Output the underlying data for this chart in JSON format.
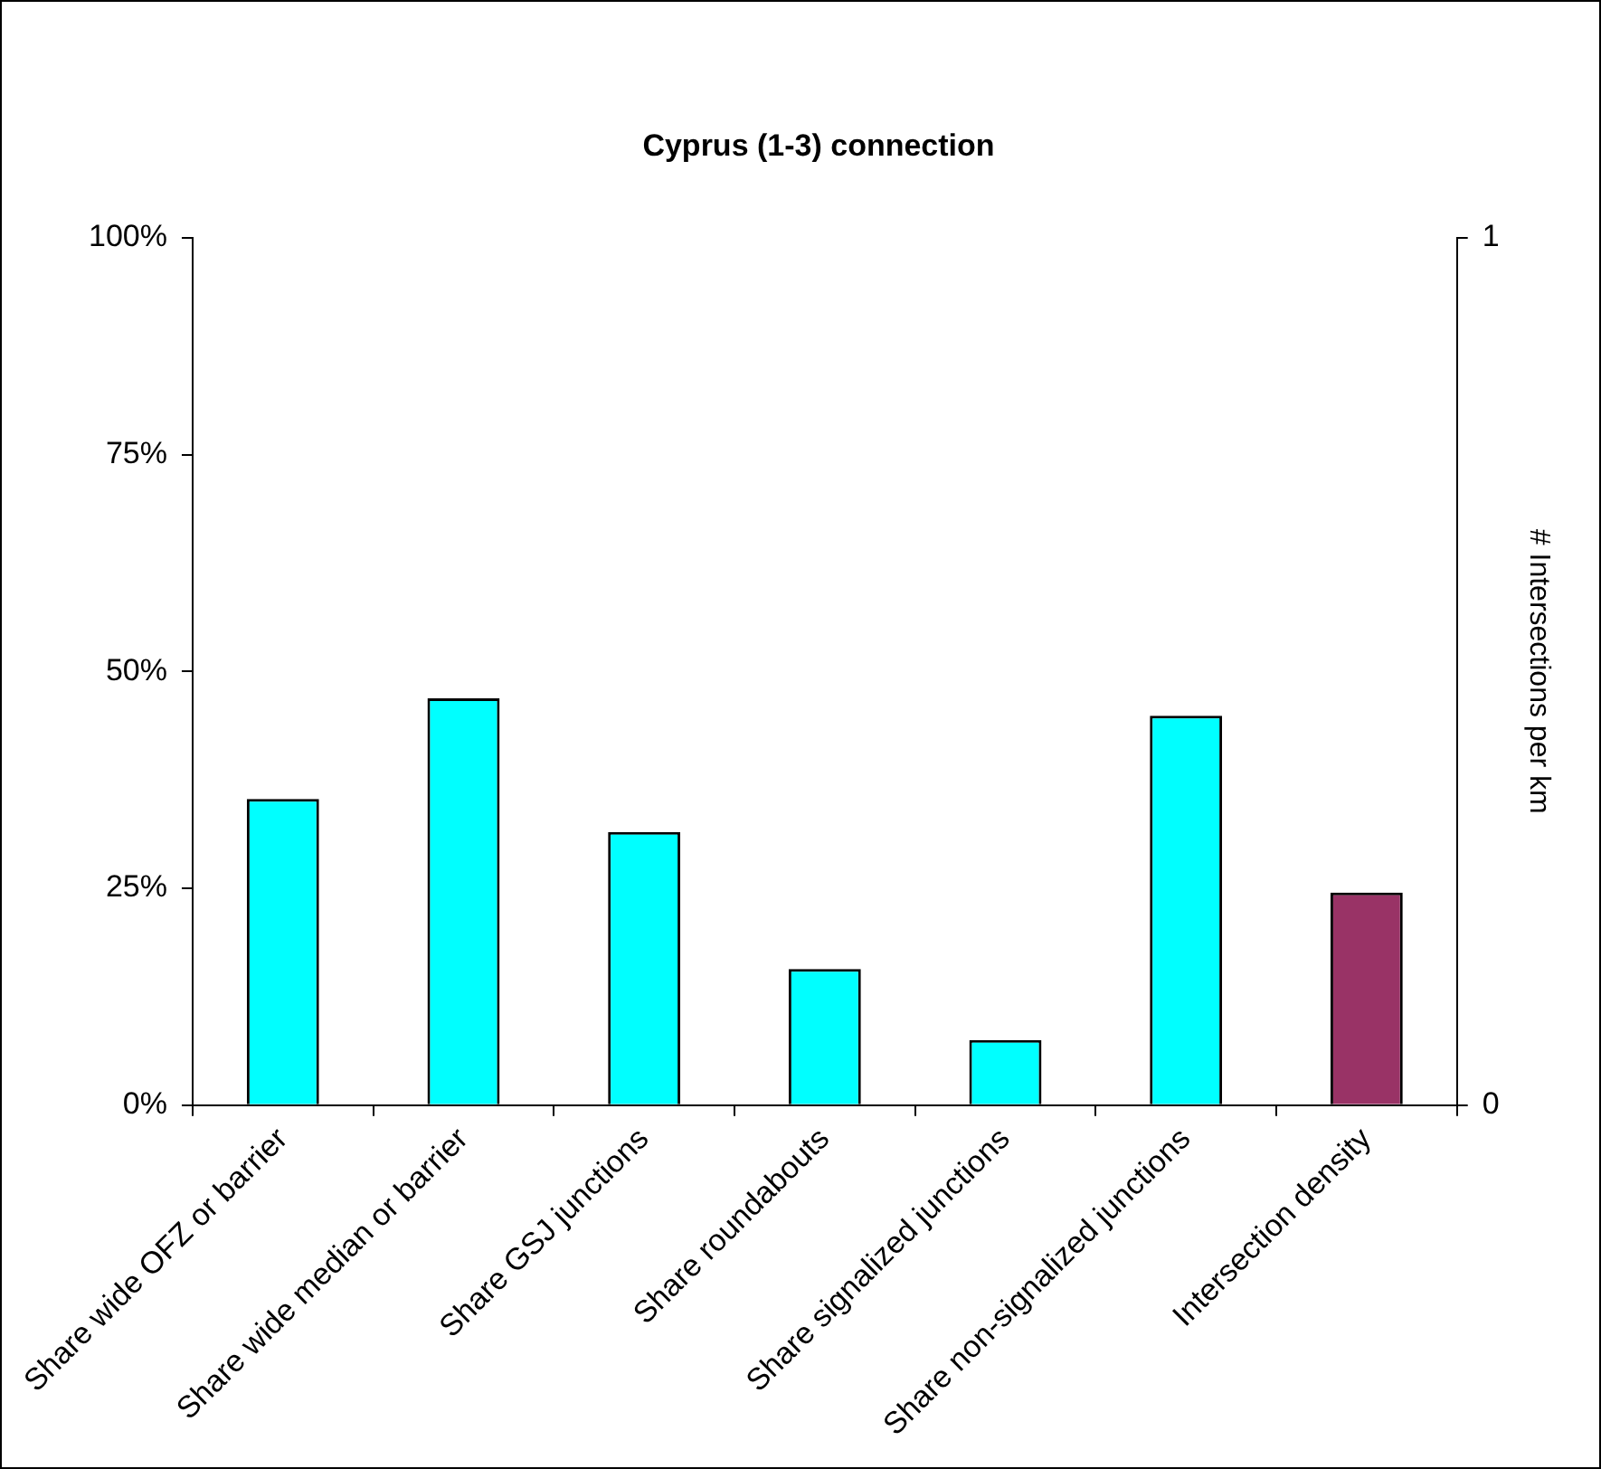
{
  "chart_data": {
    "type": "bar",
    "title": "Cyprus (1-3) connection",
    "y2label": "# Intersections per km",
    "categories": [
      "Share wide OFZ or barrier",
      "Share wide median or barrier",
      "Share GSJ junctions",
      "Share roundabouts",
      "Share signalized junctions",
      "Share non-signalized junctions",
      "Intersection density"
    ],
    "series": [
      {
        "color": "#00ffff",
        "values": [
          35.3,
          46.9,
          31.5,
          15.7,
          7.5,
          44.9,
          null
        ]
      },
      {
        "color": "#993366",
        "axis": "y2",
        "values": [
          null,
          null,
          null,
          null,
          null,
          null,
          0.245
        ]
      }
    ],
    "ylim": [
      0,
      100
    ],
    "yticks": [
      {
        "value": 0,
        "label": "0%"
      },
      {
        "value": 25,
        "label": "25%"
      },
      {
        "value": 50,
        "label": "50%"
      },
      {
        "value": 75,
        "label": "75%"
      },
      {
        "value": 100,
        "label": "100%"
      }
    ],
    "y2lim": [
      0,
      1
    ],
    "y2ticks": [
      0,
      1
    ],
    "grid": false,
    "legend": false
  }
}
